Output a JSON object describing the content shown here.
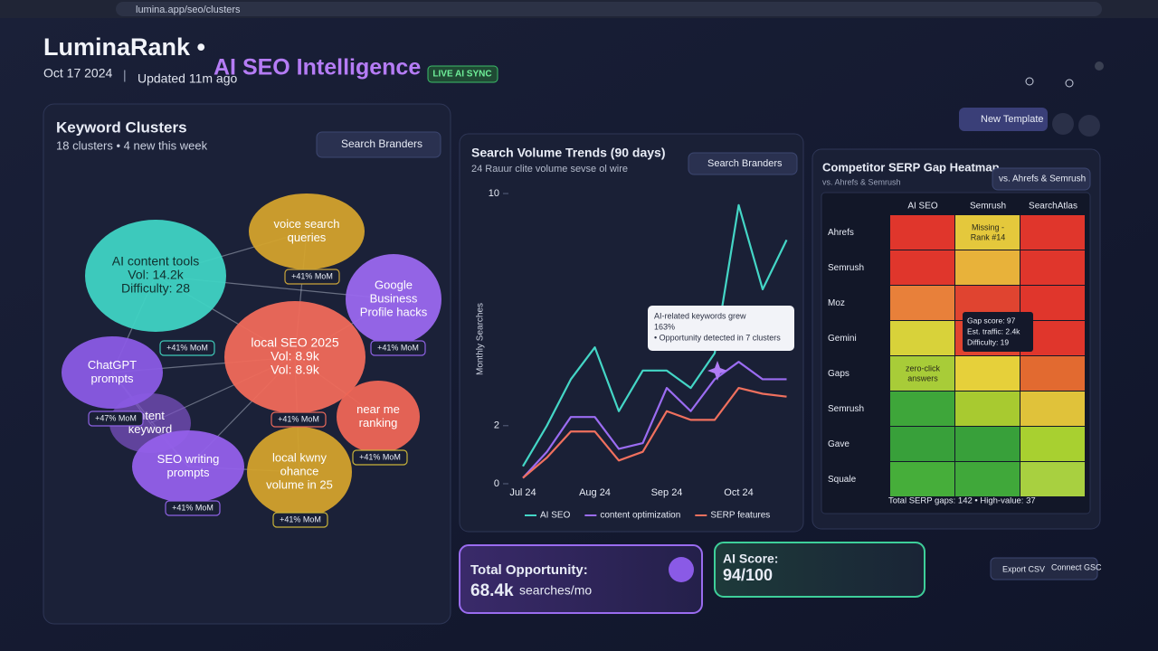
{
  "browser": {
    "url": "lumina.app/seo/clusters"
  },
  "header": {
    "brand": "LuminaRank •",
    "product": "AI SEO Intelligence",
    "badge": "LIVE AI SYNC",
    "date": "Oct 17 2024",
    "separator": "|",
    "updated": "Updated 11m ago",
    "button": "New Template"
  },
  "clusters": {
    "title": "Keyword Clusters",
    "subtitle": "18 clusters • 4 new this week",
    "button": "Search Branders",
    "bubbles": [
      {
        "lines": [
          "AI content tools",
          "Vol: 14.2k",
          "Difficulty: 28"
        ],
        "color": "#3fd3c3"
      },
      {
        "lines": [
          "voice search",
          "queries"
        ],
        "color": "#d3a22c"
      },
      {
        "lines": [
          "Google",
          "Business",
          "Profile hacks"
        ],
        "color": "#9a68ee"
      },
      {
        "lines": [
          "local SEO 2025",
          "Vol: 8.9k",
          "Vol: 8.9k"
        ],
        "color": "#f06a5a"
      },
      {
        "lines": [
          "ChatGPT",
          "prompts"
        ],
        "color": "#8a5be4"
      },
      {
        "lines": [
          "intent",
          "keyword"
        ],
        "color": "#7d52c8"
      },
      {
        "lines": [
          "near me",
          "ranking"
        ],
        "color": "#ee6656"
      },
      {
        "lines": [
          "SEO writing",
          "prompts"
        ],
        "color": "#9460ea"
      },
      {
        "lines": [
          "local kwny",
          "ohance",
          "volume in 25"
        ],
        "color": "#d3a22c"
      }
    ],
    "badges": [
      {
        "text": "+41% MoM",
        "color": "#c9a43a"
      },
      {
        "text": "+41% MoM",
        "color": "#3fc9b8"
      },
      {
        "text": "+41% MoM",
        "color": "#8e62e4"
      },
      {
        "text": "+47% MoM",
        "color": "#8e62e4"
      },
      {
        "text": "+41% MoM",
        "color": "#e8685a"
      },
      {
        "text": "+41% MoM",
        "color": "#c9b43a"
      },
      {
        "text": "+41% MoM",
        "color": "#8e62e4"
      },
      {
        "text": "+41% MoM",
        "color": "#c9b43a"
      }
    ]
  },
  "chart_data": {
    "type": "line",
    "title": "Search Volume Trends (90 days)",
    "subtitle": "24 Rauur clite volume sevse ol wire",
    "button": "Search Branders",
    "y_label": "Monthly Searches",
    "categories": [
      "Jul 24",
      null,
      null,
      "Aug 24",
      null,
      null,
      "Sep 24",
      null,
      null,
      "Oct 24",
      null,
      null
    ],
    "series": [
      {
        "name": "AI SEO",
        "color": "#44d6c6",
        "values": [
          0.6,
          2.0,
          3.6,
          4.7,
          2.5,
          3.9,
          3.9,
          3.3,
          4.5,
          9.6,
          6.7,
          8.4
        ]
      },
      {
        "name": "content optimization",
        "color": "#9b6cf2",
        "values": [
          0.2,
          1.1,
          2.3,
          2.3,
          1.2,
          1.4,
          3.3,
          2.5,
          3.6,
          4.2,
          3.6,
          3.6
        ]
      },
      {
        "name": "SERP features",
        "color": "#f0705e",
        "values": [
          0.2,
          0.9,
          1.8,
          1.8,
          0.8,
          1.1,
          2.5,
          2.2,
          2.2,
          3.3,
          3.1,
          3.0
        ]
      }
    ],
    "ylim": [
      0,
      10.5
    ],
    "yticks": [
      0,
      2,
      10
    ],
    "annotation": [
      "AI-related keywords grew",
      "163%",
      "• Opportunity detected in 7 clusters"
    ]
  },
  "heatmap": {
    "title": "Competitor SERP Gap Heatmap",
    "subtitle": "vs. Ahrefs & Semrush",
    "button": "vs. Ahrefs & Semrush",
    "columns": [
      "AI SEO",
      "Semrush",
      "SearchAtlas"
    ],
    "rows": [
      "Ahrefs",
      "Semrush",
      "Moz",
      "Gemini",
      "Gaps",
      "Semrush",
      "Gave",
      "Squale"
    ],
    "colors": [
      [
        "#e0362c",
        "#e4c83c",
        "#e0362c"
      ],
      [
        "#e0362c",
        "#e8b23a",
        "#e0362c"
      ],
      [
        "#e8803a",
        "#e04430",
        "#e0362c"
      ],
      [
        "#d8d23a",
        "#e04430",
        "#e0362c"
      ],
      [
        "#a8cc38",
        "#e6d03a",
        "#e26a30"
      ],
      [
        "#3ea63a",
        "#a8ca30",
        "#e0c23a"
      ],
      [
        "#38a03a",
        "#38a03a",
        "#a8d030"
      ],
      [
        "#46ae3a",
        "#40a83a",
        "#a8d040"
      ]
    ],
    "cell_texts": [
      {
        "row": 0,
        "col": 1,
        "lines": [
          "Missing -",
          "Rank #14"
        ]
      },
      {
        "row": 4,
        "col": 0,
        "lines": [
          "zero-click",
          "answers"
        ]
      }
    ],
    "tooltip": [
      "Gap score: 97",
      "Est. traffic: 2.4k",
      "Difficulty: 19"
    ],
    "footer": "Total SERP gaps: 142 • High-value: 37"
  },
  "cards": {
    "opportunity_label": "Total Opportunity:",
    "opportunity_value": "68.4k",
    "opportunity_unit": "searches/mo",
    "score_label": "AI Score:",
    "score_value": "94/100",
    "export": "Export CSV",
    "connect": "Connect GSC"
  }
}
